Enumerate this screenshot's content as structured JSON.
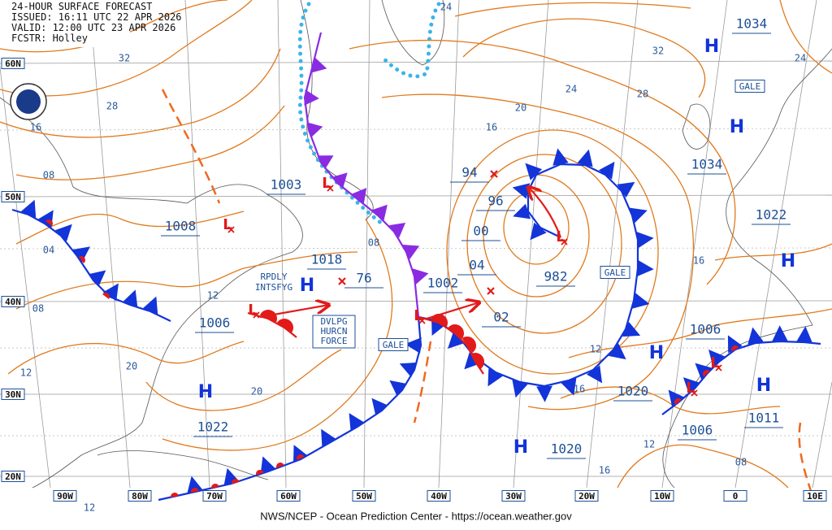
{
  "header": {
    "lines": [
      "24-HOUR SURFACE FORECAST",
      "ISSUED: 16:11 UTC 22 APR 2026",
      "VALID: 12:00 UTC 23 APR 2026",
      "FCSTR: Holley"
    ]
  },
  "footer": "NWS/NCEP - Ocean Prediction Center - https://ocean.weather.gov",
  "lat_labels": [
    "60N",
    "50N",
    "40N",
    "30N",
    "20N"
  ],
  "lon_labels": [
    "90W",
    "80W",
    "70W",
    "60W",
    "50W",
    "40W",
    "30W",
    "20W",
    "10W",
    "0",
    "10E"
  ],
  "pressure_labels": [
    "1034",
    "1034",
    "1003",
    "1008",
    "1018",
    "76",
    "1006",
    "1002",
    "94",
    "96",
    "00",
    "04",
    "02",
    "982",
    "1022",
    "1006",
    "1020",
    "1022",
    "1006",
    "1011",
    "1020"
  ],
  "isobar_labels": [
    "24",
    "32",
    "28",
    "16",
    "08",
    "04",
    "08",
    "12",
    "20",
    "12",
    "20",
    "08",
    "20",
    "16",
    "24",
    "28",
    "32",
    "24",
    "16",
    "12",
    "16",
    "12",
    "16",
    "08",
    "12"
  ],
  "highs": [
    "H",
    "H",
    "H",
    "H",
    "H",
    "H",
    "H",
    "H"
  ],
  "lows": [
    "L",
    "L",
    "L",
    "L",
    "L",
    "L",
    "L"
  ],
  "notes": {
    "rapid": [
      "RPDLY",
      "INTSFYG"
    ],
    "hurricane": [
      "DVLPG",
      "HURCN",
      "FORCE"
    ],
    "gales": [
      "GALE",
      "GALE",
      "GALE"
    ]
  }
}
